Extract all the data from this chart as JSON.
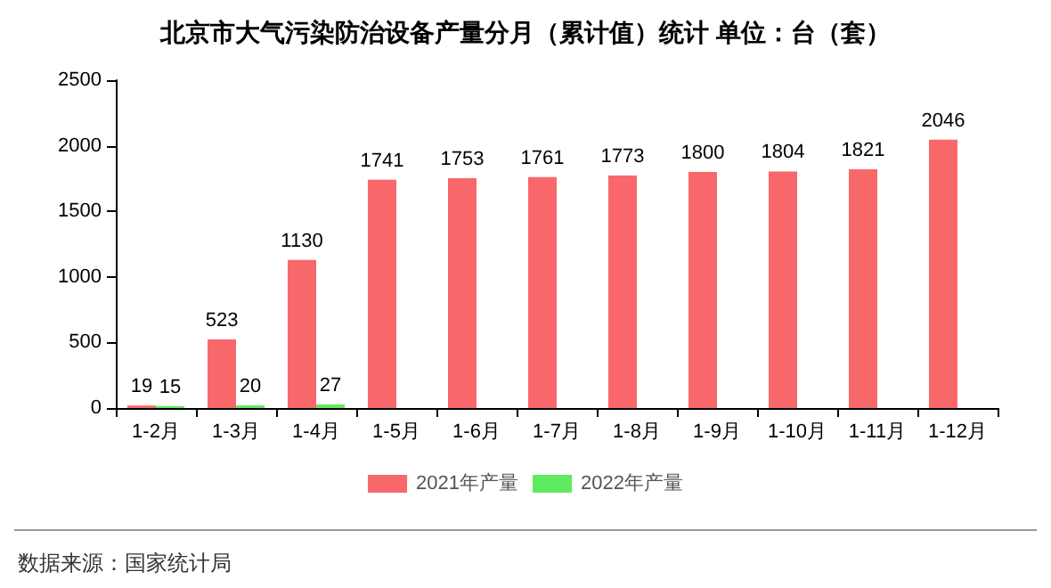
{
  "chart_data": {
    "type": "bar",
    "title": "北京市大气污染防治设备产量分月（累计值）统计 单位：台（套）",
    "categories": [
      "1-2月",
      "1-3月",
      "1-4月",
      "1-5月",
      "1-6月",
      "1-7月",
      "1-8月",
      "1-9月",
      "1-10月",
      "1-11月",
      "1-12月"
    ],
    "series": [
      {
        "name": "2021年产量",
        "color": "#f8686b",
        "values": [
          19,
          523,
          1130,
          1741,
          1753,
          1761,
          1773,
          1800,
          1804,
          1821,
          2046
        ]
      },
      {
        "name": "2022年产量",
        "color": "#5fea5f",
        "values": [
          15,
          20,
          27,
          null,
          null,
          null,
          null,
          null,
          null,
          null,
          null
        ]
      }
    ],
    "ylim": [
      0,
      2500
    ],
    "yticks": [
      0,
      500,
      1000,
      1500,
      2000,
      2500
    ],
    "data_labels": true,
    "legend": "bottom",
    "grid": false,
    "annotations": [
      "数据来源：国家统计局"
    ]
  }
}
